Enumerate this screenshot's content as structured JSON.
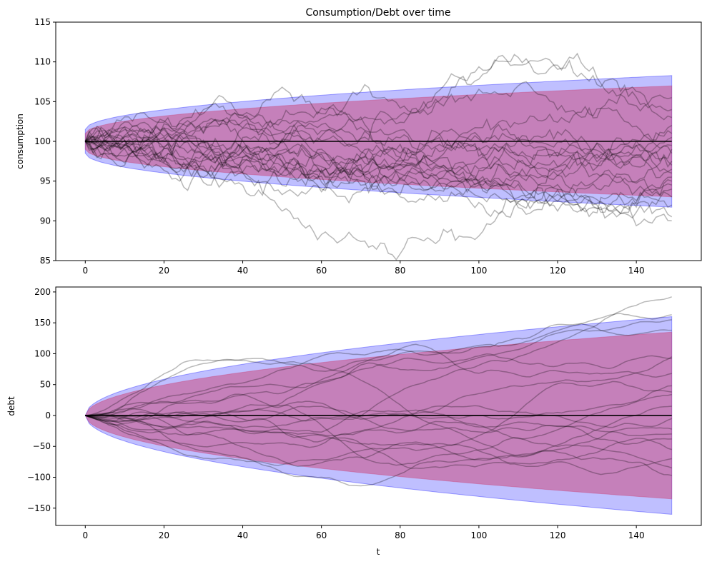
{
  "figure": {
    "title": "Consumption/Debt over time"
  },
  "chart_data": [
    {
      "type": "line",
      "title": "Consumption/Debt over time",
      "xlabel": "",
      "ylabel": "consumption",
      "xlim": [
        -7.5,
        156.5
      ],
      "ylim": [
        85,
        115
      ],
      "xticks": [
        0,
        20,
        40,
        60,
        80,
        100,
        120,
        140
      ],
      "yticks": [
        85,
        90,
        95,
        100,
        105,
        110,
        115
      ],
      "grid": false,
      "t_range": [
        0,
        149
      ],
      "mean": 100,
      "band_outer": {
        "color": "#0000ff",
        "alpha": 0.25,
        "t": [
          0,
          149
        ],
        "half_width_at_t": [
          [
            0,
            1.5
          ],
          [
            150,
            8.3
          ]
        ]
      },
      "band_inner": {
        "color": "#cc3366",
        "alpha": 0.45,
        "t": [
          0,
          149
        ],
        "half_width_at_t": [
          [
            0,
            1.0
          ],
          [
            150,
            7.0
          ]
        ]
      },
      "series": [
        {
          "endpoint_at_149": 105.5
        },
        {
          "endpoint_at_149": 104.0
        },
        {
          "endpoint_at_149": 103.0
        },
        {
          "endpoint_at_149": 102.0
        },
        {
          "endpoint_at_149": 101.0
        },
        {
          "endpoint_at_149": 100.5
        },
        {
          "endpoint_at_149": 99.5
        },
        {
          "endpoint_at_149": 99.0
        },
        {
          "endpoint_at_149": 98.5
        },
        {
          "endpoint_at_149": 97.5
        },
        {
          "endpoint_at_149": 97.0
        },
        {
          "endpoint_at_149": 96.5
        },
        {
          "endpoint_at_149": 96.0
        },
        {
          "endpoint_at_149": 95.5
        },
        {
          "endpoint_at_149": 95.0
        },
        {
          "endpoint_at_149": 94.5
        },
        {
          "endpoint_at_149": 94.0
        },
        {
          "endpoint_at_149": 93.0
        },
        {
          "endpoint_at_149": 92.0
        },
        {
          "endpoint_at_149": 90.5
        },
        {
          "endpoint_at_149": 90.0
        }
      ],
      "path_color": "#000000",
      "path_alpha": 0.28,
      "mean_color": "#000000"
    },
    {
      "type": "line",
      "title": "",
      "xlabel": "t",
      "ylabel": "debt",
      "xlim": [
        -7.5,
        156.5
      ],
      "ylim": [
        -178,
        208
      ],
      "xticks": [
        0,
        20,
        40,
        60,
        80,
        100,
        120,
        140
      ],
      "yticks": [
        -150,
        -100,
        -50,
        0,
        50,
        100,
        150,
        200
      ],
      "grid": false,
      "t_range": [
        0,
        149
      ],
      "mean": 0,
      "band_outer": {
        "color": "#0000ff",
        "alpha": 0.25,
        "t": [
          0,
          149
        ],
        "half_width_at_t": [
          [
            0,
            0
          ],
          [
            149,
            160
          ]
        ]
      },
      "band_inner": {
        "color": "#cc3366",
        "alpha": 0.45,
        "t": [
          0,
          149
        ],
        "half_width_at_t": [
          [
            0,
            0
          ],
          [
            149,
            135
          ]
        ]
      },
      "series": [
        {
          "endpoint_at_149": 192
        },
        {
          "endpoint_at_149": 163
        },
        {
          "endpoint_at_149": 155
        },
        {
          "endpoint_at_149": 138
        },
        {
          "endpoint_at_149": 95
        },
        {
          "endpoint_at_149": 92
        },
        {
          "endpoint_at_149": 68
        },
        {
          "endpoint_at_149": 48
        },
        {
          "endpoint_at_149": 38
        },
        {
          "endpoint_at_149": 34
        },
        {
          "endpoint_at_149": 15
        },
        {
          "endpoint_at_149": -5
        },
        {
          "endpoint_at_149": -22
        },
        {
          "endpoint_at_149": -30
        },
        {
          "endpoint_at_149": -38
        },
        {
          "endpoint_at_149": -55
        },
        {
          "endpoint_at_149": -70
        },
        {
          "endpoint_at_149": -85
        },
        {
          "endpoint_at_149": -97
        }
      ],
      "path_color": "#000000",
      "path_alpha": 0.28,
      "mean_color": "#000000"
    }
  ]
}
